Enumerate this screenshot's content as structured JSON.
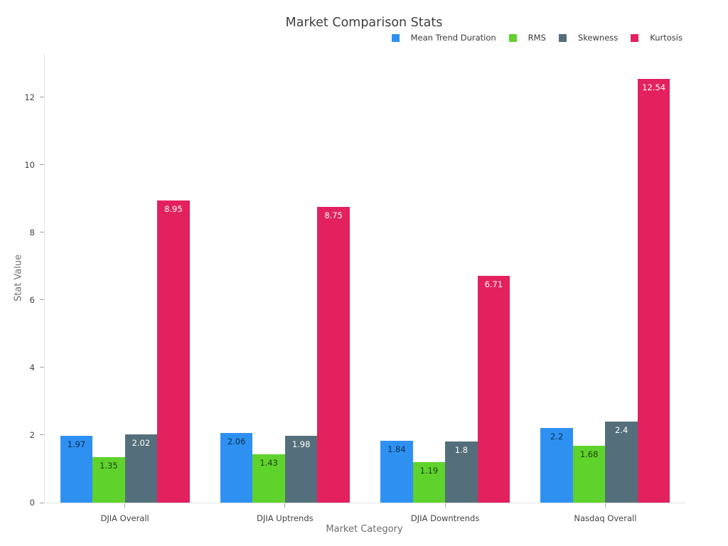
{
  "chart_data": {
    "type": "bar",
    "title": "Market Comparison Stats",
    "xlabel": "Market Category",
    "ylabel": "Stat Value",
    "categories": [
      "DJIA Overall",
      "DJIA Uptrends",
      "DJIA Downtrends",
      "Nasdaq Overall"
    ],
    "series": [
      {
        "name": "Mean Trend Duration",
        "color": "#2E91F2",
        "label_style": "dark",
        "values": [
          1.97,
          2.06,
          1.84,
          2.2
        ],
        "value_labels": [
          "1.97",
          "2.06",
          "1.84",
          "2.2"
        ]
      },
      {
        "name": "RMS",
        "color": "#5FD22C",
        "label_style": "dark",
        "values": [
          1.35,
          1.43,
          1.19,
          1.68
        ],
        "value_labels": [
          "1.35",
          "1.43",
          "1.19",
          "1.68"
        ]
      },
      {
        "name": "Skewness",
        "color": "#546F7B",
        "label_style": "light",
        "values": [
          2.02,
          1.98,
          1.8,
          2.4
        ],
        "value_labels": [
          "2.02",
          "1.98",
          "1.8",
          "2.4"
        ]
      },
      {
        "name": "Kurtosis",
        "color": "#E3215F",
        "label_style": "light",
        "values": [
          8.95,
          8.75,
          6.71,
          12.54
        ],
        "value_labels": [
          "8.95",
          "8.75",
          "6.71",
          "12.54"
        ]
      }
    ],
    "yticks": [
      0,
      2,
      4,
      6,
      8,
      10,
      12
    ],
    "ylim": [
      0,
      13.28
    ],
    "grid": false,
    "legend_position": "top-right",
    "axis_color": "#e2e4e5",
    "tick_color": "#9da1a5"
  }
}
